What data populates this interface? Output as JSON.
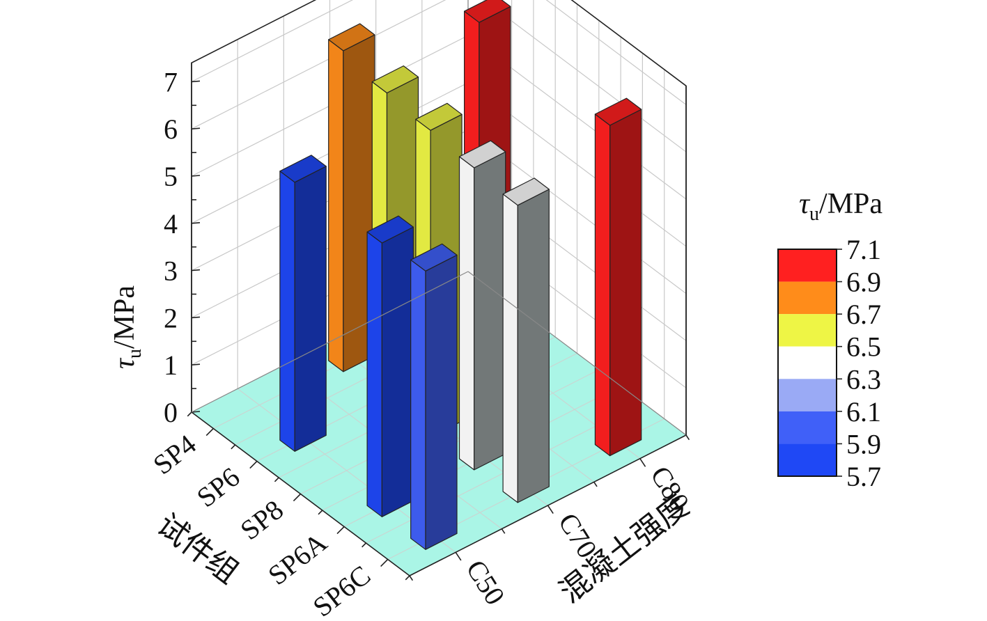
{
  "chart_data": {
    "type": "bar3d",
    "zlabel": "τu/MPa",
    "xlabel": "试件组",
    "ylabel": "混凝土强度",
    "z_ticks": [
      "0",
      "1",
      "2",
      "3",
      "4",
      "5",
      "6",
      "7"
    ],
    "zlim": [
      0,
      7.4
    ],
    "specimen_groups": [
      "SP4",
      "SP6",
      "SP8",
      "SP6A",
      "SP6C"
    ],
    "concrete_strengths": [
      "C50",
      "C70",
      "C80"
    ],
    "bars": [
      {
        "group": "SP6",
        "strength": "C50",
        "value": 5.7
      },
      {
        "group": "SP6A",
        "strength": "C50",
        "value": 5.8
      },
      {
        "group": "SP6C",
        "strength": "C50",
        "value": 5.9
      },
      {
        "group": "SP4",
        "strength": "C70",
        "value": 6.8
      },
      {
        "group": "SP6",
        "strength": "C70",
        "value": 6.6
      },
      {
        "group": "SP8",
        "strength": "C70",
        "value": 6.5
      },
      {
        "group": "SP6A",
        "strength": "C70",
        "value": 6.4
      },
      {
        "group": "SP6C",
        "strength": "C70",
        "value": 6.3
      },
      {
        "group": "SP6",
        "strength": "C80",
        "value": 7.1
      },
      {
        "group": "SP6C",
        "strength": "C80",
        "value": 7.0
      }
    ],
    "colorbar": {
      "title": "τu/MPa",
      "ticks": [
        "7.1",
        "6.9",
        "6.7",
        "6.5",
        "6.3",
        "6.1",
        "5.9",
        "5.7"
      ],
      "bands": [
        {
          "min": 6.9,
          "max": 7.1,
          "color": "#ff2020"
        },
        {
          "min": 6.7,
          "max": 6.9,
          "color": "#ff8c1a"
        },
        {
          "min": 6.5,
          "max": 6.7,
          "color": "#eef545"
        },
        {
          "min": 6.3,
          "max": 6.5,
          "color": "#ffffff"
        },
        {
          "min": 6.1,
          "max": 6.3,
          "color": "#9aaaf5"
        },
        {
          "min": 5.9,
          "max": 6.1,
          "color": "#4060f8"
        },
        {
          "min": 5.7,
          "max": 5.9,
          "color": "#1f48f5"
        }
      ]
    },
    "floor_color": "#aaf5e6"
  }
}
